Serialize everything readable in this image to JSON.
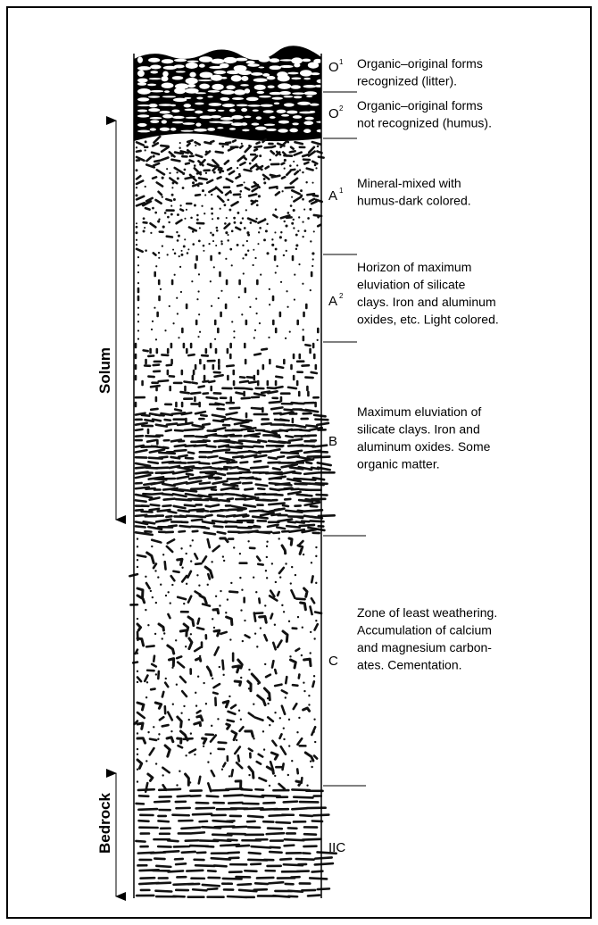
{
  "horizons": [
    {
      "label": "O",
      "sup": "1",
      "description": [
        "Organic–original forms",
        "recognized (litter)."
      ]
    },
    {
      "label": "O",
      "sup": "2",
      "description": [
        "Organic–original forms",
        "not recognized (humus)."
      ]
    },
    {
      "label": "A",
      "sup": "1",
      "description": [
        "Mineral-mixed with",
        "humus-dark colored."
      ]
    },
    {
      "label": "A",
      "sup": "2",
      "description": [
        "Horizon of maximum",
        "eluviation of  silicate",
        "clays. Iron and aluminum",
        "oxides, etc. Light colored."
      ]
    },
    {
      "label": "B",
      "description": [
        "Maximum eluviation of",
        "silicate clays. Iron and",
        "aluminum oxides. Some",
        "organic matter."
      ]
    },
    {
      "label": "C",
      "description": [
        "Zone of least weathering.",
        "Accumulation of calcium",
        "and magnesium carbon-",
        "ates. Cementation."
      ]
    },
    {
      "label": "IIC"
    }
  ],
  "side_labels": {
    "solum": "Solum",
    "bedrock": "Bedrock"
  }
}
